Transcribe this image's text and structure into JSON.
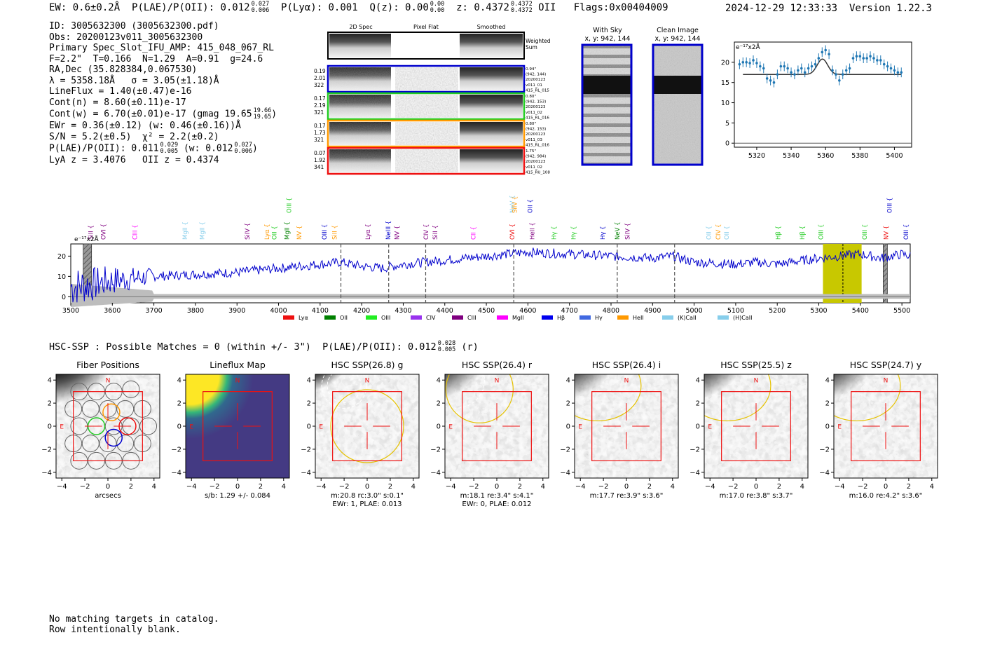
{
  "header": {
    "ew": "EW: 0.6±0.2Å",
    "plae_label": "P(LAE)/P(OII): 0.012",
    "plae_hi": "0.027",
    "plae_lo": "0.006",
    "plya": "P(Lyα): 0.001",
    "qz_label": "Q(z): 0.00",
    "qz_hi": "0.00",
    "qz_lo": "0.00",
    "z_label": "z: 0.4372",
    "z_hi": "0.4372",
    "z_lo": "0.4372",
    "z_line": "OII",
    "flags": "Flags:0x00404009"
  },
  "stamp": {
    "datetime": "2024-12-29 12:33:33",
    "version": "Version 1.22.3"
  },
  "info": {
    "id": "ID: 3005632300 (3005632300.pdf)",
    "obs": "Obs: 20200123v011_3005632300",
    "slot": "Primary Spec_Slot_IFU_AMP: 415_048_067_RL",
    "params": "F=2.2\"  T=0.166  N=1.29  A=0.91  g=24.6",
    "radec": "RA,Dec (35.828384,0.067530)",
    "lambda": "λ = 5358.18Å   σ = 3.05(±1.18)Å",
    "lineflux": "LineFlux = 1.40(±0.47)e-16",
    "contn": "Cont(n) = 8.60(±0.11)e-17",
    "contw": "Cont(w) = 6.70(±0.01)e-17 (gmag 19.65",
    "contw_hi": "19.66",
    "contw_lo": "19.65",
    "contw_end": ")",
    "ewr": "EWr = 0.36(±0.12) (w: 0.46(±0.16))Å",
    "sn": "S/N = 5.2(±0.5)  χ² = 2.2(±0.2)",
    "plae": "P(LAE)/P(OII): 0.011",
    "plae_hi": "0.029",
    "plae_lo": "0.005",
    "plae_w": "(w: 0.012",
    "plae_w_hi": "0.027",
    "plae_w_lo": "0.006",
    "plae_end": ")",
    "lyaz": "LyA z = 3.4076   OII z = 0.4374"
  },
  "cutouts": {
    "col_2d": "2D Spec",
    "col_flat": "Pixel Flat",
    "col_smooth": "Smoothed",
    "weighted": "Weighted",
    "sum": "Sum",
    "rows": [
      {
        "color": "#0000cc",
        "left": [
          "0.19",
          "2.01",
          "322"
        ],
        "right": [
          "0.94\"",
          "(942, 144)",
          "20200123",
          "v011_01",
          "415_RL_015"
        ]
      },
      {
        "color": "#22cc22",
        "left": [
          "0.17",
          "2.19",
          "321"
        ],
        "right": [
          "0.80\"",
          "(942, 153)",
          "20200123",
          "v011_02",
          "415_RL_016"
        ]
      },
      {
        "color": "#ff9900",
        "left": [
          "0.17",
          "1.73",
          "321"
        ],
        "right": [
          "0.80\"",
          "(942, 153)",
          "20200123",
          "v011_03",
          "415_RL_016"
        ]
      },
      {
        "color": "#ee1111",
        "left": [
          "0.07",
          "1.92",
          "341"
        ],
        "right": [
          "1.75\"",
          "(942, 984)",
          "20200123",
          "v011_02",
          "415_RU_108"
        ]
      }
    ]
  },
  "sky_panels": {
    "with_sky": "With Sky",
    "with_sky_xy": "x, y: 942, 144",
    "clean": "Clean Image",
    "clean_xy": "x, y: 942, 144",
    "border_color": "#0000cc"
  },
  "line_fit": {
    "unit_label": "e⁻¹⁷x2Å",
    "xticks": [
      5320,
      5340,
      5360,
      5380,
      5400
    ],
    "yticks": [
      0,
      5,
      10,
      15,
      20
    ],
    "xlim": [
      5307,
      5410
    ],
    "ylim": [
      -1,
      25
    ],
    "data_x": [
      5310,
      5312,
      5314,
      5316,
      5318,
      5320,
      5322,
      5324,
      5326,
      5328,
      5330,
      5332,
      5334,
      5336,
      5338,
      5340,
      5342,
      5344,
      5346,
      5348,
      5350,
      5352,
      5354,
      5356,
      5358,
      5360,
      5362,
      5364,
      5366,
      5368,
      5370,
      5372,
      5374,
      5376,
      5378,
      5380,
      5382,
      5384,
      5386,
      5388,
      5390,
      5392,
      5394,
      5396,
      5398,
      5400,
      5402,
      5404
    ],
    "data_y": [
      19.5,
      20,
      20,
      19.8,
      20.5,
      19.8,
      19,
      18.5,
      16,
      15.5,
      15,
      17,
      19,
      19,
      18.5,
      17.5,
      17,
      18,
      18.5,
      17.5,
      18.5,
      19,
      19.5,
      21,
      22.5,
      23,
      22,
      18,
      17,
      15.5,
      17,
      18,
      18.5,
      21,
      21.5,
      21.5,
      21,
      21,
      21.5,
      21,
      20.5,
      20.5,
      19.5,
      19,
      18.5,
      18,
      17.5,
      17.5
    ],
    "model_base": 17,
    "model_amp": 3.8,
    "model_center": 5358.18,
    "model_sigma": 3.05,
    "data_color": "#1f77b4"
  },
  "chart_data": {
    "type": "line",
    "ylabel": "e⁻¹⁷x2Å",
    "xlim": [
      3500,
      5520
    ],
    "ylim": [
      -3,
      26
    ],
    "xticks": [
      3500,
      3600,
      3700,
      3800,
      3900,
      4000,
      4100,
      4200,
      4300,
      4400,
      4500,
      4600,
      4700,
      4800,
      4900,
      5000,
      5100,
      5200,
      5300,
      5400,
      5500
    ],
    "yticks": [
      0,
      10,
      20
    ],
    "series_color": "#0000cc",
    "spectrum_anchors_x": [
      3500,
      3550,
      3600,
      3650,
      3700,
      3800,
      3900,
      4000,
      4100,
      4150,
      4200,
      4250,
      4300,
      4400,
      4500,
      4550,
      4600,
      4700,
      4800,
      4900,
      4950,
      5000,
      5100,
      5150,
      5200,
      5300,
      5350,
      5400,
      5450,
      5500,
      5520
    ],
    "spectrum_anchors_y": [
      5,
      6,
      8,
      9,
      10,
      11,
      12,
      14,
      16,
      17,
      15,
      14,
      16,
      18,
      20,
      21,
      22,
      21,
      20,
      19,
      20,
      17,
      16,
      17,
      16,
      19,
      20,
      21,
      19,
      21,
      20
    ],
    "dashed_lines": [
      4150,
      4265,
      4354,
      4566,
      4815,
      4953
    ],
    "highlight_band": [
      5310,
      5403
    ],
    "highlight_color": "#c8c800",
    "highlight_center": 5358,
    "hatched_bands": [
      [
        3530,
        3550
      ],
      [
        5455,
        5465
      ]
    ],
    "line_labels": [
      {
        "t": "SiII",
        "x": 3548,
        "c": "#800080",
        "row": 0
      },
      {
        "t": "OVI",
        "x": 3578,
        "c": "#800080",
        "row": 0
      },
      {
        "t": "CIII",
        "x": 3654,
        "c": "#ff00ff",
        "row": 0
      },
      {
        "t": "MgII",
        "x": 3775,
        "c": "#87ceeb",
        "row": 0
      },
      {
        "t": "MgII",
        "x": 3816,
        "c": "#87ceeb",
        "row": 0
      },
      {
        "t": "SiIV",
        "x": 3925,
        "c": "#800080",
        "row": 0
      },
      {
        "t": "Lyα",
        "x": 3972,
        "c": "#ff9900",
        "row": 0
      },
      {
        "t": "OII",
        "x": 3990,
        "c": "#22cc22",
        "row": 0
      },
      {
        "t": "MgII",
        "x": 4020,
        "c": "#008000",
        "row": 0
      },
      {
        "t": "OIII",
        "x": 4025,
        "c": "#22cc22",
        "row": 1
      },
      {
        "t": "NV",
        "x": 4050,
        "c": "#ff9900",
        "row": 0
      },
      {
        "t": "OIII",
        "x": 4110,
        "c": "#0000cc",
        "row": 0
      },
      {
        "t": "SiII",
        "x": 4135,
        "c": "#ff9900",
        "row": 0
      },
      {
        "t": "Lyα",
        "x": 4215,
        "c": "#800080",
        "row": 0
      },
      {
        "t": "NeIII",
        "x": 4264,
        "c": "#0000cc",
        "row": 0
      },
      {
        "t": "NV",
        "x": 4285,
        "c": "#800080",
        "row": 0
      },
      {
        "t": "CIV",
        "x": 4355,
        "c": "#800080",
        "row": 0
      },
      {
        "t": "SiII",
        "x": 4377,
        "c": "#800080",
        "row": 0
      },
      {
        "t": "CII",
        "x": 4469,
        "c": "#ff00ff",
        "row": 0
      },
      {
        "t": "OVI",
        "x": 4562,
        "c": "#ee1111",
        "row": 0
      },
      {
        "t": "NeV",
        "x": 4562,
        "c": "#87ceeb",
        "row": 1
      },
      {
        "t": "SiIV",
        "x": 4568,
        "c": "#ff9900",
        "row": 1
      },
      {
        "t": "OII",
        "x": 4605,
        "c": "#0000cc",
        "row": 1
      },
      {
        "t": "HeII",
        "x": 4610,
        "c": "#800080",
        "row": 0
      },
      {
        "t": "Hγ",
        "x": 4663,
        "c": "#22cc22",
        "row": 0
      },
      {
        "t": "Hγ",
        "x": 4710,
        "c": "#22cc22",
        "row": 0
      },
      {
        "t": "Hγ",
        "x": 4780,
        "c": "#0000cc",
        "row": 0
      },
      {
        "t": "NeV",
        "x": 4815,
        "c": "#008000",
        "row": 0
      },
      {
        "t": "SiIV",
        "x": 4840,
        "c": "#800080",
        "row": 0
      },
      {
        "t": "OII",
        "x": 5035,
        "c": "#87ceeb",
        "row": 0
      },
      {
        "t": "CIV",
        "x": 5058,
        "c": "#ff9900",
        "row": 0
      },
      {
        "t": "OII",
        "x": 5078,
        "c": "#87ceeb",
        "row": 0
      },
      {
        "t": "Hβ",
        "x": 5202,
        "c": "#22cc22",
        "row": 0
      },
      {
        "t": "Hβ",
        "x": 5260,
        "c": "#22cc22",
        "row": 0
      },
      {
        "t": "OIII",
        "x": 5305,
        "c": "#22cc22",
        "row": 0
      },
      {
        "t": "OIII",
        "x": 5410,
        "c": "#22cc22",
        "row": 0
      },
      {
        "t": "NV",
        "x": 5462,
        "c": "#ee1111",
        "row": 0
      },
      {
        "t": "OIII",
        "x": 5470,
        "c": "#0000cc",
        "row": 1
      },
      {
        "t": "OIII",
        "x": 5510,
        "c": "#0000cc",
        "row": 0
      }
    ],
    "legend": [
      {
        "label": "Lyα",
        "color": "#ee1111"
      },
      {
        "label": "OII",
        "color": "#008000"
      },
      {
        "label": "OIII",
        "color": "#22ee22"
      },
      {
        "label": "CIV",
        "color": "#9933ee"
      },
      {
        "label": "CIII",
        "color": "#800080"
      },
      {
        "label": "MgII",
        "color": "#ff00ff"
      },
      {
        "label": "Hβ",
        "color": "#0000ee"
      },
      {
        "label": "Hγ",
        "color": "#4169e1"
      },
      {
        "label": "HeII",
        "color": "#ff9900"
      },
      {
        "label": "(K)CaII",
        "color": "#87ceeb"
      },
      {
        "label": "(H)CaII",
        "color": "#87ceeb"
      }
    ]
  },
  "hsc": {
    "title": "HSC-SSP : Possible Matches = 0 (within +/- 3\")  P(LAE)/P(OII): 0.012",
    "title_hi": "0.028",
    "title_lo": "0.005",
    "title_end": "(r)",
    "ticks": [
      -4,
      -2,
      0,
      2,
      4
    ],
    "n_label": "N",
    "e_label": "E",
    "panels": [
      {
        "title": "Fiber Positions",
        "sub1": "arcsecs",
        "sub2": "",
        "kind": "fiber"
      },
      {
        "title": "Lineflux Map",
        "sub1": "s/b: 1.29 +/- 0.084",
        "sub2": "",
        "kind": "lineflux"
      },
      {
        "title": "HSC SSP(26.8) g",
        "sub1": "m:20.8 rc:3.0\"  s:0.1\"",
        "sub2": "EWr: 1, PLAE: 0.013",
        "kind": "g"
      },
      {
        "title": "HSC SSP(26.4) r",
        "sub1": "m:18.1  re:3.4\"  s:4.1\"",
        "sub2": "EWr: 0, PLAE: 0.012",
        "kind": "r"
      },
      {
        "title": "HSC SSP(26.4) i",
        "sub1": "m:17.7  re:3.9\"  s:3.6\"",
        "sub2": "",
        "kind": "i"
      },
      {
        "title": "HSC SSP(25.5) z",
        "sub1": "m:17.0  re:3.8\"  s:3.7\"",
        "sub2": "",
        "kind": "z"
      },
      {
        "title": "HSC SSP(24.7) y",
        "sub1": "m:16.0  re:4.2\"  s:3.6\"",
        "sub2": "",
        "kind": "y"
      }
    ]
  },
  "footer": {
    "line1": "No matching targets in catalog.",
    "line2": "Row intentionally blank."
  }
}
